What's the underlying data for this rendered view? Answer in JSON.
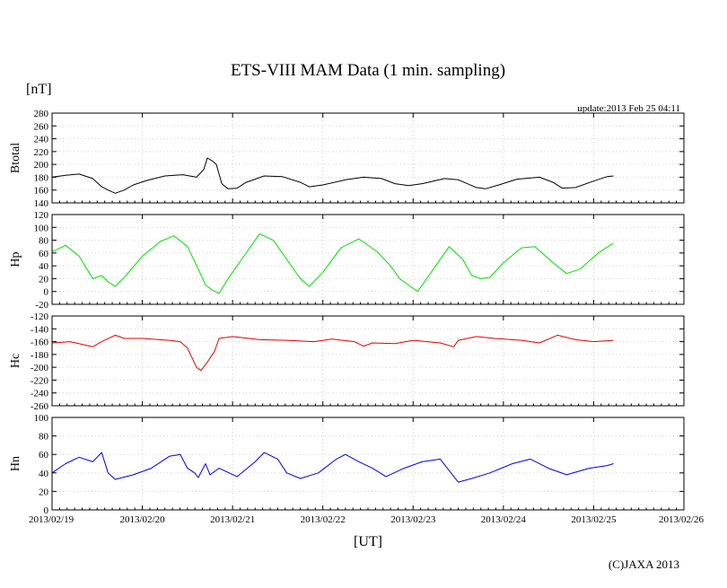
{
  "chart_data": {
    "type": "line",
    "title": "ETS-VIII MAM Data (1 min. sampling)",
    "unit_label": "[nT]",
    "update": "update:2013 Feb 25 04:11",
    "xlabel": "[UT]",
    "credit": "(C)JAXA 2013",
    "x_ticks": [
      "2013/02/19",
      "2013/02/20",
      "2013/02/21",
      "2013/02/22",
      "2013/02/23",
      "2013/02/24",
      "2013/02/25",
      "2013/02/26"
    ],
    "xlim": [
      0,
      7
    ],
    "x_units": "days since 2013/02/19 00:00 UT",
    "panels": [
      {
        "name": "Btotal",
        "color": "#000000",
        "ylim": [
          140,
          280
        ],
        "yticks": [
          140,
          160,
          180,
          200,
          220,
          240,
          260,
          280
        ],
        "points": [
          [
            0,
            180
          ],
          [
            0.15,
            183
          ],
          [
            0.3,
            185
          ],
          [
            0.45,
            178
          ],
          [
            0.55,
            165
          ],
          [
            0.62,
            160
          ],
          [
            0.7,
            155
          ],
          [
            0.8,
            160
          ],
          [
            0.9,
            168
          ],
          [
            1.05,
            175
          ],
          [
            1.25,
            182
          ],
          [
            1.45,
            184
          ],
          [
            1.6,
            180
          ],
          [
            1.68,
            192
          ],
          [
            1.72,
            210
          ],
          [
            1.78,
            205
          ],
          [
            1.82,
            200
          ],
          [
            1.88,
            170
          ],
          [
            1.95,
            162
          ],
          [
            2.05,
            163
          ],
          [
            2.15,
            172
          ],
          [
            2.35,
            182
          ],
          [
            2.55,
            181
          ],
          [
            2.75,
            172
          ],
          [
            2.85,
            165
          ],
          [
            3.0,
            168
          ],
          [
            3.25,
            176
          ],
          [
            3.45,
            180
          ],
          [
            3.65,
            178
          ],
          [
            3.8,
            170
          ],
          [
            3.95,
            167
          ],
          [
            4.1,
            170
          ],
          [
            4.35,
            178
          ],
          [
            4.5,
            176
          ],
          [
            4.6,
            170
          ],
          [
            4.7,
            164
          ],
          [
            4.8,
            162
          ],
          [
            4.95,
            168
          ],
          [
            5.15,
            177
          ],
          [
            5.4,
            180
          ],
          [
            5.55,
            172
          ],
          [
            5.65,
            163
          ],
          [
            5.8,
            164
          ],
          [
            6.0,
            174
          ],
          [
            6.15,
            181
          ],
          [
            6.22,
            182
          ]
        ]
      },
      {
        "name": "Hp",
        "color": "#00e000",
        "ylim": [
          -20,
          120
        ],
        "yticks": [
          -20,
          0,
          20,
          40,
          60,
          80,
          100,
          120
        ],
        "points": [
          [
            0,
            62
          ],
          [
            0.15,
            72
          ],
          [
            0.3,
            55
          ],
          [
            0.45,
            20
          ],
          [
            0.55,
            25
          ],
          [
            0.62,
            15
          ],
          [
            0.7,
            8
          ],
          [
            0.8,
            22
          ],
          [
            1.0,
            55
          ],
          [
            1.2,
            78
          ],
          [
            1.35,
            87
          ],
          [
            1.5,
            70
          ],
          [
            1.62,
            35
          ],
          [
            1.7,
            10
          ],
          [
            1.78,
            2
          ],
          [
            1.85,
            -3
          ],
          [
            1.95,
            20
          ],
          [
            2.1,
            50
          ],
          [
            2.3,
            90
          ],
          [
            2.45,
            80
          ],
          [
            2.6,
            50
          ],
          [
            2.75,
            20
          ],
          [
            2.85,
            8
          ],
          [
            3.0,
            30
          ],
          [
            3.2,
            68
          ],
          [
            3.4,
            82
          ],
          [
            3.6,
            62
          ],
          [
            3.75,
            40
          ],
          [
            3.85,
            20
          ],
          [
            3.95,
            10
          ],
          [
            4.05,
            0
          ],
          [
            4.2,
            30
          ],
          [
            4.4,
            70
          ],
          [
            4.55,
            50
          ],
          [
            4.65,
            25
          ],
          [
            4.75,
            20
          ],
          [
            4.85,
            22
          ],
          [
            5.0,
            45
          ],
          [
            5.2,
            68
          ],
          [
            5.35,
            70
          ],
          [
            5.55,
            45
          ],
          [
            5.7,
            28
          ],
          [
            5.85,
            35
          ],
          [
            6.05,
            60
          ],
          [
            6.2,
            74
          ],
          [
            6.22,
            74
          ]
        ]
      },
      {
        "name": "Hc",
        "color": "#e00000",
        "ylim": [
          -260,
          -120
        ],
        "yticks": [
          -260,
          -240,
          -220,
          -200,
          -180,
          -160,
          -140,
          -120
        ],
        "points": [
          [
            0,
            -162
          ],
          [
            0.2,
            -160
          ],
          [
            0.45,
            -168
          ],
          [
            0.55,
            -160
          ],
          [
            0.7,
            -150
          ],
          [
            0.8,
            -155
          ],
          [
            1.0,
            -155
          ],
          [
            1.3,
            -158
          ],
          [
            1.42,
            -160
          ],
          [
            1.5,
            -170
          ],
          [
            1.55,
            -185
          ],
          [
            1.6,
            -200
          ],
          [
            1.65,
            -205
          ],
          [
            1.72,
            -192
          ],
          [
            1.8,
            -175
          ],
          [
            1.85,
            -155
          ],
          [
            2.0,
            -152
          ],
          [
            2.3,
            -157
          ],
          [
            2.6,
            -158
          ],
          [
            2.9,
            -160
          ],
          [
            3.1,
            -156
          ],
          [
            3.35,
            -160
          ],
          [
            3.45,
            -167
          ],
          [
            3.55,
            -162
          ],
          [
            3.8,
            -163
          ],
          [
            4.0,
            -158
          ],
          [
            4.3,
            -162
          ],
          [
            4.45,
            -168
          ],
          [
            4.5,
            -158
          ],
          [
            4.7,
            -152
          ],
          [
            4.9,
            -155
          ],
          [
            5.2,
            -158
          ],
          [
            5.4,
            -162
          ],
          [
            5.6,
            -150
          ],
          [
            5.8,
            -157
          ],
          [
            6.0,
            -160
          ],
          [
            6.22,
            -158
          ]
        ]
      },
      {
        "name": "Hn",
        "color": "#0000e0",
        "ylim": [
          0,
          100
        ],
        "yticks": [
          0,
          20,
          40,
          60,
          80,
          100
        ],
        "points": [
          [
            0,
            40
          ],
          [
            0.15,
            50
          ],
          [
            0.3,
            57
          ],
          [
            0.45,
            52
          ],
          [
            0.55,
            62
          ],
          [
            0.62,
            40
          ],
          [
            0.7,
            33
          ],
          [
            0.9,
            38
          ],
          [
            1.1,
            45
          ],
          [
            1.3,
            58
          ],
          [
            1.42,
            60
          ],
          [
            1.5,
            45
          ],
          [
            1.58,
            40
          ],
          [
            1.62,
            35
          ],
          [
            1.7,
            50
          ],
          [
            1.75,
            38
          ],
          [
            1.85,
            45
          ],
          [
            2.05,
            36
          ],
          [
            2.25,
            52
          ],
          [
            2.35,
            62
          ],
          [
            2.5,
            55
          ],
          [
            2.6,
            40
          ],
          [
            2.75,
            34
          ],
          [
            2.95,
            40
          ],
          [
            3.15,
            55
          ],
          [
            3.25,
            60
          ],
          [
            3.4,
            52
          ],
          [
            3.55,
            45
          ],
          [
            3.7,
            36
          ],
          [
            3.9,
            45
          ],
          [
            4.1,
            52
          ],
          [
            4.3,
            55
          ],
          [
            4.42,
            40
          ],
          [
            4.5,
            30
          ],
          [
            4.65,
            34
          ],
          [
            4.85,
            40
          ],
          [
            5.1,
            50
          ],
          [
            5.3,
            55
          ],
          [
            5.5,
            45
          ],
          [
            5.7,
            38
          ],
          [
            5.95,
            45
          ],
          [
            6.15,
            48
          ],
          [
            6.22,
            50
          ]
        ]
      }
    ]
  }
}
